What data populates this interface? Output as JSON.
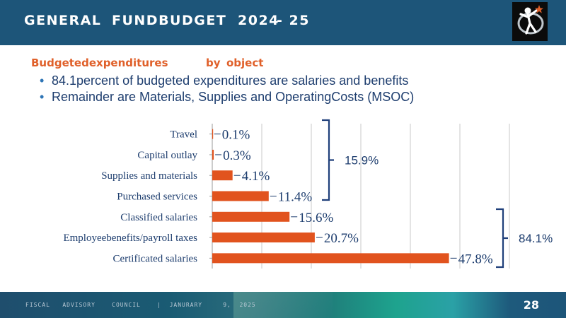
{
  "header": {
    "title_parts": [
      "GENERAL",
      "FUNDBUDGET",
      "2024",
      "- 25"
    ]
  },
  "subtitle": {
    "part1": "Budgetedexpenditures",
    "part2": "by",
    "part3": "object"
  },
  "bullets": [
    "84.1percent of budgeted expenditures are salaries and benefits",
    "Remainder are Materials, Supplies and OperatingCosts (MSOC)"
  ],
  "chart_data": {
    "type": "bar",
    "orientation": "horizontal",
    "categories": [
      "Travel",
      "Capital outlay",
      "Supplies and materials",
      "Purchased services",
      "Classified salaries",
      "Employeebenefits/payroll  taxes",
      "Certificated salaries"
    ],
    "values": [
      0.1,
      0.3,
      4.1,
      11.4,
      15.6,
      20.7,
      47.8
    ],
    "labels": [
      "0.1%",
      "0.3%",
      "4.1%",
      "11.4%",
      "15.6%",
      "20.7%",
      "47.8%"
    ],
    "xlim": [
      0,
      60
    ],
    "grid": true,
    "bar_color": "#e1531e",
    "bracket_groups": [
      {
        "label": "15.9%",
        "from": 0,
        "to": 3
      },
      {
        "label": "84.1%",
        "from": 4,
        "to": 6
      }
    ]
  },
  "footer": {
    "text": "FISCAL   ADVISORY    COUNCIL    |  JANURARY     9,  2025",
    "page_number": "28"
  },
  "colors": {
    "header": "#1d5579",
    "accent": "#e0602a",
    "text": "#1d3d6e",
    "bracket": "#1f3f7a"
  }
}
